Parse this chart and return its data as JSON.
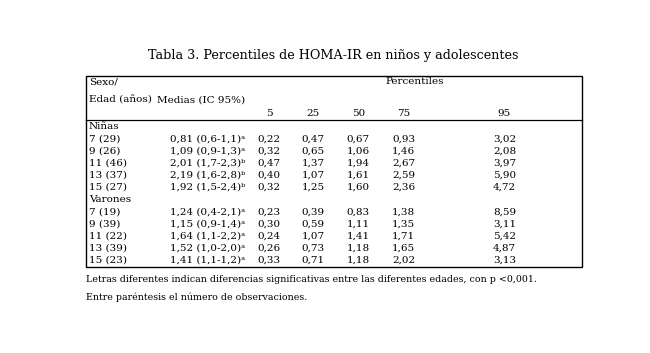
{
  "title": "Tabla 3. Percentiles de HOMA-IR en niños y adolescentes",
  "section_ninas": "Niñas",
  "section_varones": "Varones",
  "rows_ninas": [
    [
      "7 (29)",
      "0,81 (0,6-1,1)ᵃ",
      "0,22",
      "0,47",
      "0,67",
      "0,93",
      "3,02"
    ],
    [
      "9 (26)",
      "1,09 (0,9-1,3)ᵃ",
      "0,32",
      "0,65",
      "1,06",
      "1,46",
      "2,08"
    ],
    [
      "11 (46)",
      "2,01 (1,7-2,3)ᵇ",
      "0,47",
      "1,37",
      "1,94",
      "2,67",
      "3,97"
    ],
    [
      "13 (37)",
      "2,19 (1,6-2,8)ᵇ",
      "0,40",
      "1,07",
      "1,61",
      "2,59",
      "5,90"
    ],
    [
      "15 (27)",
      "1,92 (1,5-2,4)ᵇ",
      "0,32",
      "1,25",
      "1,60",
      "2,36",
      "4,72"
    ]
  ],
  "rows_varones": [
    [
      "7 (19)",
      "1,24 (0,4-2,1)ᵃ",
      "0,23",
      "0,39",
      "0,83",
      "1,38",
      "8,59"
    ],
    [
      "9 (39)",
      "1,15 (0,9-1,4)ᵃ",
      "0,30",
      "0,59",
      "1,11",
      "1,35",
      "3,11"
    ],
    [
      "11 (22)",
      "1,64 (1,1-2,2)ᵃ",
      "0,24",
      "1,07",
      "1,41",
      "1,71",
      "5,42"
    ],
    [
      "13 (39)",
      "1,52 (1,0-2,0)ᵃ",
      "0,26",
      "0,73",
      "1,18",
      "1,65",
      "4,87"
    ],
    [
      "15 (23)",
      "1,41 (1,1-1,2)ᵃ",
      "0,33",
      "0,71",
      "1,18",
      "2,02",
      "3,13"
    ]
  ],
  "percentile_labels": [
    "5",
    "25",
    "50",
    "75",
    "95"
  ],
  "footnote1": "Letras diferentes indican diferencias significativas entre las diferentes edades, con p <0,001.",
  "footnote2": "Entre paréntesis el número de observaciones.",
  "bg_color": "#ffffff",
  "text_color": "#000000",
  "border_color": "#000000"
}
